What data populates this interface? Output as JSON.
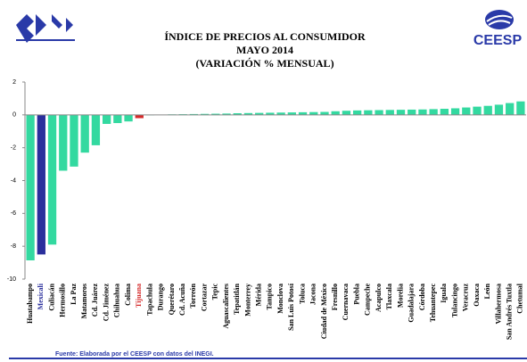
{
  "chart_data": {
    "type": "bar",
    "title_lines": [
      "ÍNDICE DE PRECIOS AL CONSUMIDOR",
      "MAYO 2014",
      "(VARIACIÓN % MENSUAL)"
    ],
    "logo_text": "CEESP",
    "source": "Fuente: Elaborada por el CEESP con datos del INEGI.",
    "categories": [
      "Huatabampo",
      "Mexicali",
      "Culiacán",
      "Hermosillo",
      "La Paz",
      "Matamoros",
      "Cd. Juárez",
      "Cd. Jiménez",
      "Chihuahua",
      "Colima",
      "Tijuana",
      "Tapachula",
      "Durango",
      "Querétaro",
      "Cd. Acuña",
      "Torreón",
      "Cortazar",
      "Tepic",
      "Aguascalientes",
      "Tepatitlán",
      "Monterrey",
      "Mérida",
      "Tampico",
      "Monclova",
      "San Luis Potosí",
      "Toluca",
      "Jacona",
      "Ciudad de México",
      "Fresnillo",
      "Cuernavaca",
      "Puebla",
      "Campeche",
      "Acapulco",
      "Tlaxcala",
      "Morelia",
      "Guadalajara",
      "Córdoba",
      "Tehuantepec",
      "Iguala",
      "Tulancingo",
      "Veracruz",
      "Oaxaca",
      "León",
      "Villahermosa",
      "San Andrés Tuxtla",
      "Chetumal"
    ],
    "values": [
      -8.86,
      -8.5,
      -7.9,
      -3.4,
      -3.15,
      -2.3,
      -1.85,
      -0.55,
      -0.5,
      -0.4,
      -0.2,
      -0.02,
      0.01,
      0.03,
      0.04,
      0.05,
      0.06,
      0.07,
      0.08,
      0.1,
      0.11,
      0.12,
      0.13,
      0.14,
      0.15,
      0.16,
      0.17,
      0.18,
      0.22,
      0.25,
      0.27,
      0.28,
      0.29,
      0.3,
      0.31,
      0.32,
      0.33,
      0.35,
      0.37,
      0.4,
      0.45,
      0.5,
      0.55,
      0.62,
      0.72,
      0.82
    ],
    "color": "#33d9a0",
    "colors": [
      "#33d9a0",
      "#2a2f9c",
      "#33d9a0",
      "#33d9a0",
      "#33d9a0",
      "#33d9a0",
      "#33d9a0",
      "#33d9a0",
      "#33d9a0",
      "#33d9a0",
      "#d42a2a",
      "#33d9a0",
      "#33d9a0",
      "#33d9a0",
      "#33d9a0",
      "#33d9a0",
      "#33d9a0",
      "#33d9a0",
      "#33d9a0",
      "#33d9a0",
      "#33d9a0",
      "#33d9a0",
      "#33d9a0",
      "#33d9a0",
      "#33d9a0",
      "#33d9a0",
      "#33d9a0",
      "#33d9a0",
      "#33d9a0",
      "#33d9a0",
      "#33d9a0",
      "#33d9a0",
      "#33d9a0",
      "#33d9a0",
      "#33d9a0",
      "#33d9a0",
      "#33d9a0",
      "#33d9a0",
      "#33d9a0",
      "#33d9a0",
      "#33d9a0",
      "#33d9a0",
      "#33d9a0",
      "#33d9a0",
      "#33d9a0",
      "#33d9a0"
    ],
    "ylim": [
      -10,
      2
    ],
    "yticks": [
      2,
      0,
      -2,
      -4,
      -6,
      -8,
      -10
    ],
    "grid": false
  }
}
